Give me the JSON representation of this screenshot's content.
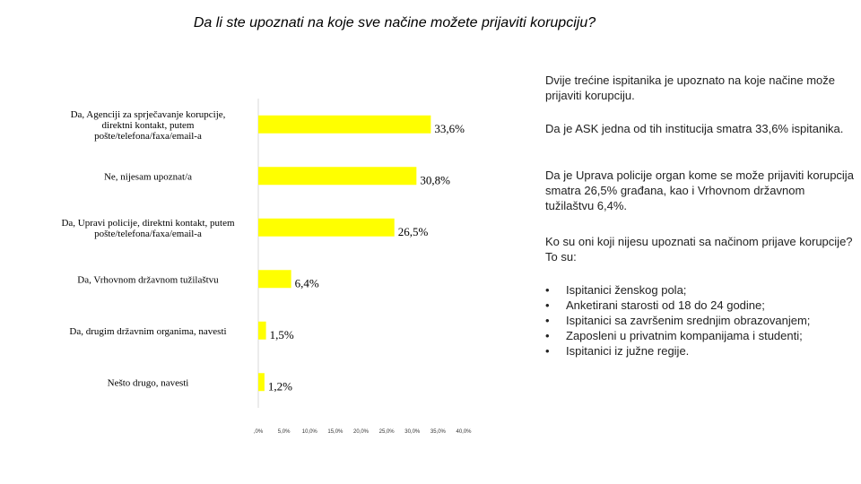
{
  "title": "Da li ste upoznati na koje sve načine možete prijaviti korupciju?",
  "chart_data": {
    "type": "bar",
    "orientation": "horizontal",
    "categories": [
      "Da, Agenciji za sprječavanje korupcije, direktni kontakt, putem pošte/telefona/faxa/email-a",
      "Ne, nijesam upoznat/a",
      "Da, Upravi policije, direktni kontakt, putem pošte/telefona/faxa/email-a",
      "Da, Vrhovnom državnom tužilaštvu",
      "Da, drugim državnim organima, navesti",
      "Nešto drugo, navesti"
    ],
    "category_lines": [
      [
        "Da, Agenciji za sprječavanje korupcije,",
        "direktni kontakt, putem",
        "pošte/telefona/faxa/email-a"
      ],
      [
        "Ne, nijesam upoznat/a"
      ],
      [
        "Da, Upravi policije, direktni kontakt, putem",
        "pošte/telefona/faxa/email-a"
      ],
      [
        "Da, Vrhovnom državnom tužilaštvu"
      ],
      [
        "Da, drugim državnim organima, navesti"
      ],
      [
        "Nešto drugo, navesti"
      ]
    ],
    "values": [
      33.6,
      30.8,
      26.5,
      6.4,
      1.5,
      1.2
    ],
    "value_labels": [
      "33,6%",
      "30,8%",
      "26,5%",
      "6,4%",
      "1,5%",
      "1,2%"
    ],
    "x_ticks": [
      ",0%",
      "5,0%",
      "10,0%",
      "15,0%",
      "20,0%",
      "25,0%",
      "30,0%",
      "35,0%",
      "40,0%"
    ],
    "xlim": [
      0,
      40
    ],
    "bar_color": "#ffff00",
    "grid": false
  },
  "notes": {
    "intro": "Dvije trećine ispitanika je upoznato na koje načine može prijaviti korupciju.",
    "ask": "Da je ASK jedna od tih institucija smatra 33,6% ispitanika.",
    "police": "Da je Uprava policije organ kome se može prijaviti korupcija smatra 26,5% građana, kao i Vrhovnom državnom tužilaštvu 6,4%.",
    "question": "Ko su oni koji nijesu upoznati sa načinom prijave korupcije? To su:",
    "bullet_symbol": "•",
    "bullets": [
      "Ispitanici ženskog pola;",
      "Anketirani starosti od 18 do 24 godine;",
      "Ispitanici sa završenim srednjim obrazovanjem;",
      "Zaposleni u privatnim kompanijama i studenti;",
      "Ispitanici iz južne regije."
    ]
  }
}
